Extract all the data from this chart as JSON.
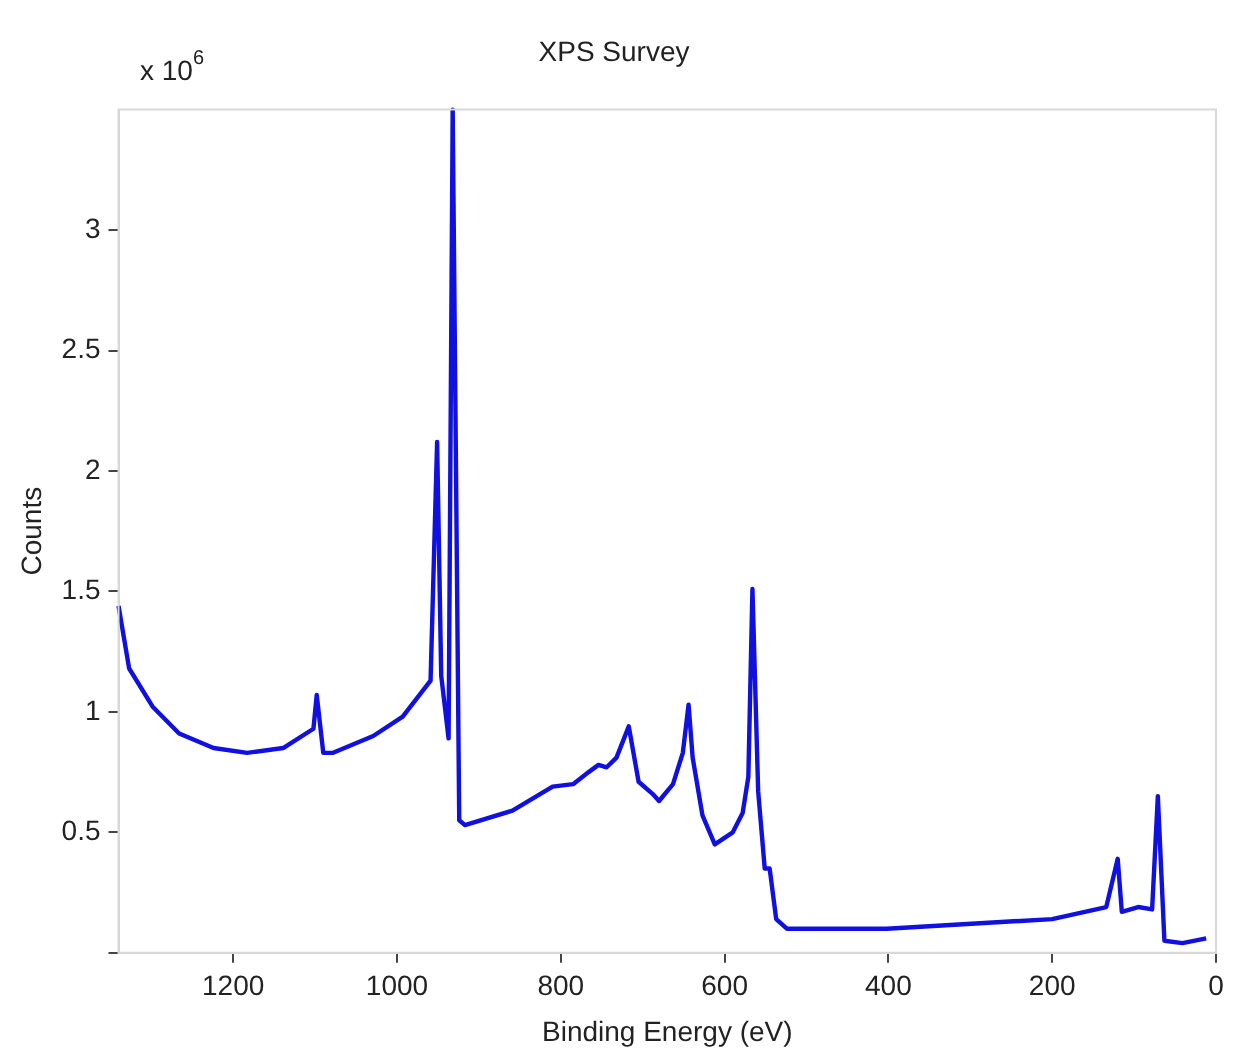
{
  "chart_data": {
    "type": "line",
    "title": "XPS Survey",
    "xlabel": "Binding Energy (eV)",
    "ylabel": "Counts",
    "annotations": [
      "x 10$^{6}$"
    ],
    "xlim": [
      1340,
      0
    ],
    "xticks": [
      1200,
      1000,
      800,
      600,
      400,
      200,
      0
    ],
    "ylim": [
      0,
      3.5
    ],
    "yticks": [
      {
        "value": 0,
        "label": null
      },
      0.5,
      1,
      1.5,
      2,
      2.5,
      3
    ],
    "grid": false,
    "legend": false,
    "marker": "none",
    "line_style": "solid",
    "series": [
      {
        "color": "#1010e0",
        "x": [
          1340,
          1327,
          1298,
          1266,
          1224,
          1183,
          1139,
          1102,
          1098,
          1090,
          1078,
          1029,
          993,
          968,
          959,
          951,
          946,
          937,
          932,
          924,
          917,
          859,
          810,
          785,
          766,
          754,
          744,
          732,
          717,
          705,
          688,
          680,
          663,
          651,
          644,
          639,
          627,
          612,
          590,
          578,
          571,
          566,
          559,
          551,
          545,
          537,
          524,
          402,
          200,
          134,
          120,
          115,
          95,
          78,
          71,
          63,
          41,
          12
        ],
        "values": [
          1.44,
          1.18,
          1.02,
          0.91,
          0.85,
          0.83,
          0.85,
          0.93,
          1.07,
          0.83,
          0.83,
          0.9,
          0.98,
          1.09,
          1.13,
          2.12,
          1.15,
          0.89,
          3.5,
          0.55,
          0.53,
          0.59,
          0.69,
          0.7,
          0.75,
          0.78,
          0.77,
          0.81,
          0.94,
          0.71,
          0.66,
          0.63,
          0.7,
          0.83,
          1.03,
          0.81,
          0.57,
          0.45,
          0.5,
          0.58,
          0.73,
          1.51,
          0.67,
          0.35,
          0.35,
          0.14,
          0.1,
          0.1,
          0.14,
          0.19,
          0.39,
          0.17,
          0.19,
          0.18,
          0.65,
          0.05,
          0.04,
          0.06
        ]
      }
    ]
  }
}
